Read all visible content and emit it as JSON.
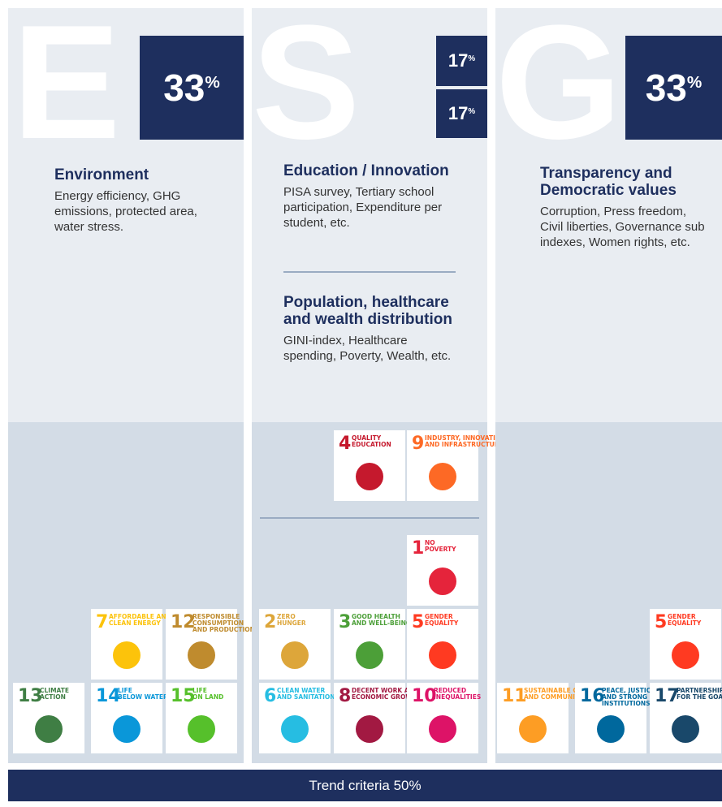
{
  "columns": [
    {
      "letter": "E",
      "percents": [
        {
          "value": "33",
          "unit": "%"
        }
      ],
      "sections": [
        {
          "title": "Environment",
          "text": "Energy efficiency, GHG emissions, protected area, water stress."
        }
      ],
      "goals": [
        {
          "number": "7",
          "label": [
            "AFFORDABLE AND",
            "CLEAN ENERGY"
          ]
        },
        {
          "number": "12",
          "label": [
            "RESPONSIBLE",
            "CONSUMPTION",
            "AND PRODUCTION"
          ]
        },
        {
          "number": "13",
          "label": [
            "CLIMATE",
            "ACTION"
          ]
        },
        {
          "number": "14",
          "label": [
            "LIFE",
            "BELOW WATER"
          ]
        },
        {
          "number": "15",
          "label": [
            "LIFE",
            "ON LAND"
          ]
        }
      ]
    },
    {
      "letter": "S",
      "percents": [
        {
          "value": "17",
          "unit": "%"
        },
        {
          "value": "17",
          "unit": "%"
        }
      ],
      "sections": [
        {
          "title": "Education / Innovation",
          "text": "PISA survey, Tertiary school participation, Expenditure per student, etc."
        },
        {
          "title": "Population, healthcare and wealth distribution",
          "text": "GINI-index, Healthcare spending, Poverty, Wealth, etc."
        }
      ],
      "goals": [
        {
          "number": "4",
          "label": [
            "QUALITY",
            "EDUCATION"
          ]
        },
        {
          "number": "9",
          "label": [
            "INDUSTRY, INNOVATION",
            "AND INFRASTRUCTURE"
          ]
        },
        {
          "number": "1",
          "label": [
            "NO",
            "POVERTY"
          ]
        },
        {
          "number": "2",
          "label": [
            "ZERO",
            "HUNGER"
          ]
        },
        {
          "number": "3",
          "label": [
            "GOOD HEALTH",
            "AND WELL-BEING"
          ]
        },
        {
          "number": "5",
          "label": [
            "GENDER",
            "EQUALITY"
          ]
        },
        {
          "number": "6",
          "label": [
            "CLEAN WATER",
            "AND SANITATION"
          ]
        },
        {
          "number": "8",
          "label": [
            "DECENT WORK AND",
            "ECONOMIC GROWTH"
          ]
        },
        {
          "number": "10",
          "label": [
            "REDUCED",
            "INEQUALITIES"
          ]
        }
      ]
    },
    {
      "letter": "G",
      "percents": [
        {
          "value": "33",
          "unit": "%"
        }
      ],
      "sections": [
        {
          "title": "Transparency and Democratic values",
          "text": "Corruption, Press freedom, Civil liberties, Governance sub indexes, Women rights, etc."
        }
      ],
      "goals": [
        {
          "number": "5",
          "label": [
            "GENDER",
            "EQUALITY"
          ]
        },
        {
          "number": "11",
          "label": [
            "SUSTAINABLE CITIES",
            "AND COMMUNITIES"
          ]
        },
        {
          "number": "16",
          "label": [
            "PEACE, JUSTICE",
            "AND STRONG",
            "INSTITUTIONS"
          ]
        },
        {
          "number": "17",
          "label": [
            "PARTNERSHIPS",
            "FOR THE GOALS"
          ]
        }
      ]
    }
  ],
  "footer": "Trend criteria 50%"
}
